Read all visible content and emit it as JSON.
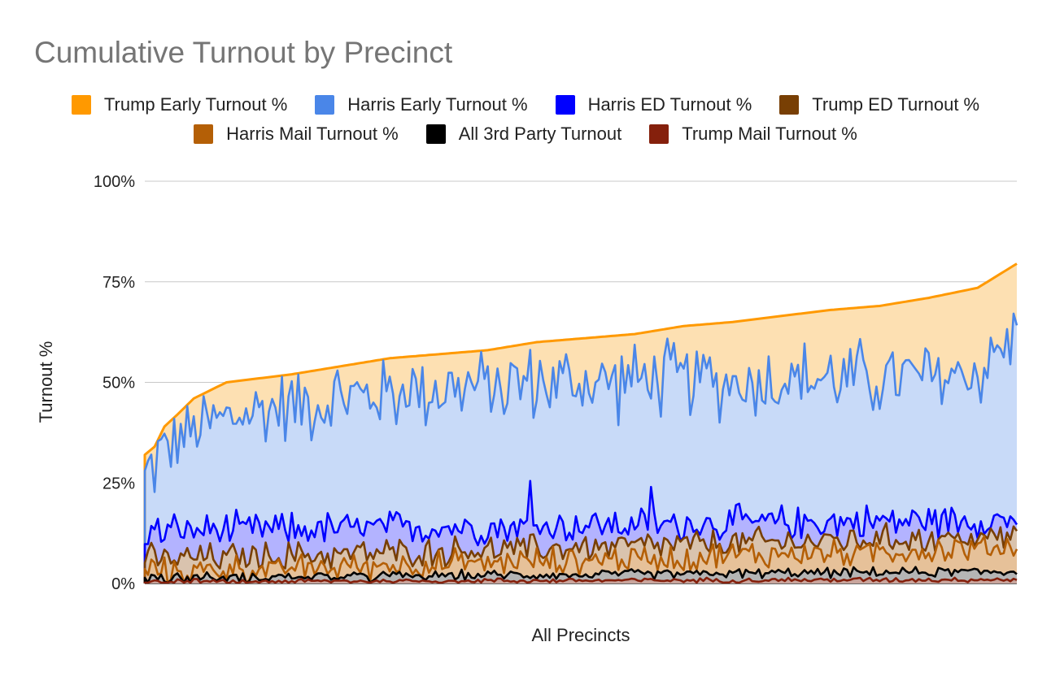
{
  "chart_data": {
    "type": "area",
    "title": "Cumulative Turnout by Precinct",
    "xlabel": "All Precincts",
    "ylabel": "Turnout %",
    "ylim": [
      0,
      1
    ],
    "yticks": [
      "0%",
      "25%",
      "50%",
      "75%",
      "100%"
    ],
    "grid": true,
    "legend_position": "top",
    "n_precincts": 268,
    "x_ticks_shown": false,
    "series": [
      {
        "name": "Trump Early Turnout %",
        "color": "#ff9900",
        "stacked_top": true,
        "anchors": [
          [
            0,
            0.32
          ],
          [
            3,
            0.34
          ],
          [
            6,
            0.39
          ],
          [
            10,
            0.42
          ],
          [
            15,
            0.46
          ],
          [
            20,
            0.48
          ],
          [
            25,
            0.5
          ],
          [
            35,
            0.51
          ],
          [
            45,
            0.52
          ],
          [
            60,
            0.54
          ],
          [
            75,
            0.56
          ],
          [
            90,
            0.57
          ],
          [
            105,
            0.58
          ],
          [
            120,
            0.6
          ],
          [
            135,
            0.61
          ],
          [
            150,
            0.62
          ],
          [
            165,
            0.64
          ],
          [
            180,
            0.65
          ],
          [
            195,
            0.665
          ],
          [
            210,
            0.68
          ],
          [
            225,
            0.69
          ],
          [
            240,
            0.71
          ],
          [
            255,
            0.735
          ],
          [
            268,
            0.8
          ]
        ]
      },
      {
        "name": "Harris Early Turnout %",
        "color": "#4a86e8",
        "anchors": [
          [
            0,
            0.26
          ],
          [
            3,
            0.3
          ],
          [
            6,
            0.34
          ],
          [
            12,
            0.37
          ],
          [
            20,
            0.4
          ],
          [
            40,
            0.44
          ],
          [
            60,
            0.46
          ],
          [
            80,
            0.48
          ],
          [
            100,
            0.49
          ],
          [
            120,
            0.5
          ],
          [
            140,
            0.5
          ],
          [
            160,
            0.51
          ],
          [
            180,
            0.5
          ],
          [
            200,
            0.51
          ],
          [
            220,
            0.51
          ],
          [
            240,
            0.51
          ],
          [
            255,
            0.53
          ],
          [
            268,
            0.62
          ]
        ],
        "noise": 0.08
      },
      {
        "name": "Harris ED Turnout %",
        "color": "#0000ff",
        "anchors": [
          [
            0,
            0.13
          ],
          [
            268,
            0.16
          ]
        ],
        "noise": 0.035,
        "spikes": [
          [
            118,
            0.255
          ],
          [
            155,
            0.24
          ]
        ]
      },
      {
        "name": "Trump ED Turnout %",
        "color": "#783f04",
        "anchors": [
          [
            0,
            0.06
          ],
          [
            268,
            0.12
          ]
        ],
        "noise": 0.03
      },
      {
        "name": "Harris Mail Turnout %",
        "color": "#b45f06",
        "anchors": [
          [
            0,
            0.03
          ],
          [
            268,
            0.09
          ]
        ],
        "noise": 0.03
      },
      {
        "name": "All 3rd Party Turnout",
        "color": "#000000",
        "anchors": [
          [
            0,
            0.015
          ],
          [
            268,
            0.03
          ]
        ],
        "noise": 0.01
      },
      {
        "name": "Trump Mail Turnout %",
        "color": "#85200c",
        "anchors": [
          [
            0,
            0.005
          ],
          [
            268,
            0.01
          ]
        ],
        "noise": 0.005
      }
    ]
  }
}
